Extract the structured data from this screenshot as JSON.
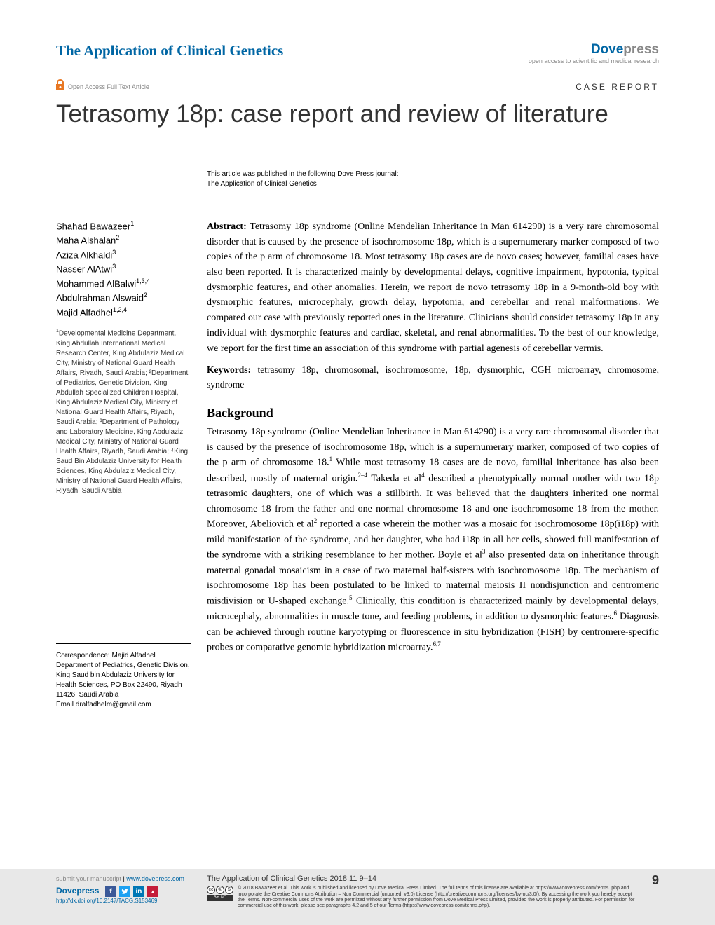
{
  "header": {
    "journal_title": "The Application of Clinical Genetics",
    "publisher_prefix": "Dove",
    "publisher_suffix": "press",
    "oa_tagline": "open access to scientific and medical research"
  },
  "oa_row": {
    "icon_label": "Open Access Full Text Article",
    "article_type": "CASE REPORT"
  },
  "article": {
    "title": "Tetrasomy 18p: case report and review of literature",
    "pub_note_line1": "This article was published in the following Dove Press journal:",
    "pub_note_line2": "The Application of Clinical Genetics"
  },
  "authors": [
    {
      "name": "Shahad Bawazeer",
      "aff": "1"
    },
    {
      "name": "Maha Alshalan",
      "aff": "2"
    },
    {
      "name": "Aziza Alkhaldi",
      "aff": "3"
    },
    {
      "name": "Nasser AlAtwi",
      "aff": "3"
    },
    {
      "name": "Mohammed AlBalwi",
      "aff": "1,3,4"
    },
    {
      "name": "Abdulrahman Alswaid",
      "aff": "2"
    },
    {
      "name": "Majid Alfadhel",
      "aff": "1,2,4"
    }
  ],
  "affiliations_text": "Developmental Medicine Department, King Abdullah International Medical Research Center, King Abdulaziz Medical City, Ministry of National Guard Health Affairs, Riyadh, Saudi Arabia; ²Department of Pediatrics, Genetic Division, King Abdullah Specialized Children Hospital, King Abdulaziz Medical City, Ministry of National Guard Health Affairs, Riyadh, Saudi Arabia; ³Department of Pathology and Laboratory Medicine, King Abdulaziz Medical City, Ministry of National Guard Health Affairs, Riyadh, Saudi Arabia; ⁴King Saud Bin Abdulaziz University for Health Sciences, King Abdulaziz Medical City, Ministry of National Guard Health Affairs, Riyadh, Saudi Arabia",
  "affiliation_first_sup": "1",
  "correspondence": {
    "label": "Correspondence: Majid Alfadhel",
    "address": "Department of Pediatrics, Genetic Division, King Saud bin Abdulaziz University for Health Sciences, PO Box 22490, Riyadh 11426, Saudi Arabia",
    "email_label": "Email",
    "email": "dralfadhelm@gmail.com"
  },
  "abstract": {
    "label": "Abstract:",
    "text": " Tetrasomy 18p syndrome (Online Mendelian Inheritance in Man 614290) is a very rare chromosomal disorder that is caused by the presence of isochromosome 18p, which is a supernumerary marker composed of two copies of the p arm of chromosome 18. Most tetrasomy 18p cases are de novo cases; however, familial cases have also been reported. It is characterized mainly by developmental delays, cognitive impairment, hypotonia, typical dysmorphic features, and other anomalies. Herein, we report de novo tetrasomy 18p in a 9-month-old boy with dysmorphic features, microcephaly, growth delay, hypotonia, and cerebellar and renal malformations. We compared our case with previously reported ones in the literature. Clinicians should consider tetrasomy 18p in any individual with dysmorphic features and cardiac, skeletal, and renal abnormalities. To the best of our knowledge, we report for the first time an association of this syndrome with partial agenesis of cerebellar vermis."
  },
  "keywords": {
    "label": "Keywords:",
    "text": " tetrasomy 18p, chromosomal, isochromosome, 18p, dysmorphic, CGH microarray, chromosome, syndrome"
  },
  "background": {
    "heading": "Background",
    "p1_a": "Tetrasomy 18p syndrome (Online Mendelian Inheritance in Man 614290) is a very rare chromosomal disorder that is caused by the presence of isochromosome 18p, which is a supernumerary marker, composed of two copies of the p arm of chromosome 18.",
    "p1_b": " While most tetrasomy 18 cases are de novo, familial inheritance has also been described, mostly of maternal origin.",
    "p1_c": " Takeda et al",
    "p1_d": " described a phenotypically normal mother with two 18p tetrasomic daughters, one of which was a stillbirth. It was believed that the daughters inherited one normal chromosome 18 from the father and one normal chromosome 18 and one isochromosome 18 from the mother. Moreover, Abeliovich et al",
    "p1_e": " reported a case wherein the mother was a mosaic for isochromosome 18p(i18p) with mild manifestation of the syndrome, and her daughter, who had i18p in all her cells, showed full manifestation of the syndrome with a striking resemblance to her mother. Boyle et al",
    "p1_f": " also presented data on inheritance through maternal gonadal mosaicism in a case of two maternal half-sisters with isochromosome 18p. The mechanism of isochromosome 18p has been postulated to be linked to maternal meiosis II nondisjunction and centromeric misdivision or U-shaped exchange.",
    "p1_g": " Clinically, this condition is characterized mainly by developmental delays, microcephaly, abnormalities in muscle tone, and feeding problems, in addition to dysmorphic features.",
    "p1_h": " Diagnosis can be achieved through routine karyotyping or fluorescence in situ hybridization (FISH) by centromere-specific probes or comparative genomic hybridization microarray.",
    "sup1": "1",
    "sup2": "2–4",
    "sup3": "4",
    "sup4": "2",
    "sup5": "3",
    "sup6": "5",
    "sup7": "6",
    "sup8": "6,7"
  },
  "footer": {
    "submit_label": "submit your manuscript",
    "submit_url": "www.dovepress.com",
    "dove_label": "Dovepress",
    "doi": "http://dx.doi.org/10.2147/TACG.S153469",
    "citation": "The Application of Clinical Genetics 2018:11 9–14",
    "copyright": "© 2018 Bawazeer et al. This work is published and licensed by Dove Medical Press Limited. The full terms of this license are available at https://www.dovepress.com/terms. php and incorporate the Creative Commons Attribution – Non Commercial (unported, v3.0) License (http://creativecommons.org/licenses/by-nc/3.0/). By accessing the work you hereby accept the Terms. Non-commercial uses of the work are permitted without any further permission from Dove Medical Press Limited, provided the work is properly attributed. For permission for commercial use of this work, please see paragraphs 4.2 and 5 of our Terms (https://www.dovepress.com/terms.php).",
    "page_number": "9",
    "social_fb": "f",
    "social_tw": "",
    "social_li": "in",
    "social_mn": "",
    "nc_label": "BY NC"
  },
  "colors": {
    "accent_blue": "#0066a4",
    "orange": "#e87722",
    "footer_bg": "#e8e8e8"
  }
}
